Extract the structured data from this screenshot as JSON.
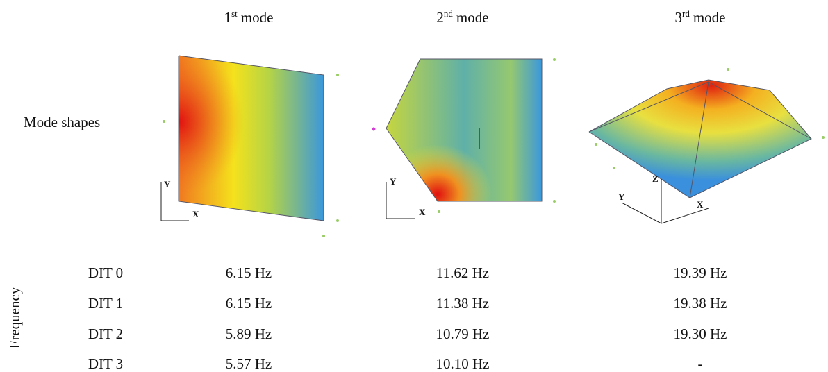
{
  "header": {
    "modes": [
      {
        "number": "1",
        "suffix": "st",
        "label": "mode",
        "axes": [
          "Y",
          "X"
        ]
      },
      {
        "number": "2",
        "suffix": "nd",
        "label": "mode",
        "axes": [
          "Y",
          "X"
        ]
      },
      {
        "number": "3",
        "suffix": "rd",
        "label": "mode",
        "axes": [
          "Z",
          "Y",
          "X"
        ]
      }
    ]
  },
  "row_label": "Mode shapes",
  "table": {
    "side_label": "Frequency",
    "rows": [
      [
        "DIT 0",
        "6.15 Hz",
        "11.62 Hz",
        "19.39 Hz"
      ],
      [
        "DIT 1",
        "6.15 Hz",
        "11.38 Hz",
        "19.38 Hz"
      ],
      [
        "DIT 2",
        "5.89 Hz",
        "10.79 Hz",
        "19.30 Hz"
      ],
      [
        "DIT 3",
        "5.57 Hz",
        "10.10 Hz",
        "-"
      ]
    ]
  }
}
